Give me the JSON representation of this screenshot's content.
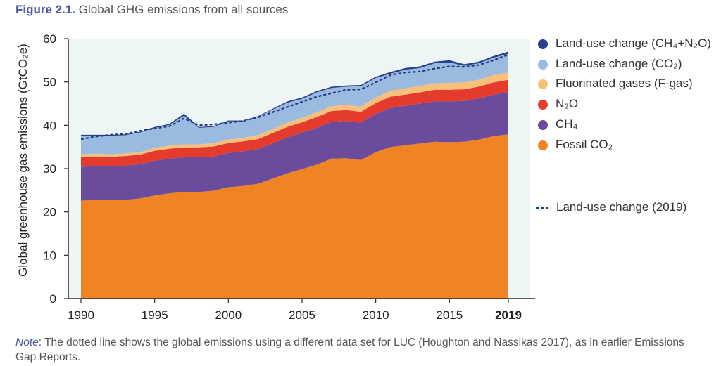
{
  "figure": {
    "number": "Figure 2.1.",
    "title": "Global GHG emissions from all sources"
  },
  "note": {
    "label": "Note",
    "text": ": The dotted line shows the global emissions using a different data set for LUC (Houghton and Nassikas 2017), as in earlier Emissions Gap Reports."
  },
  "chart_data": {
    "type": "area",
    "stacked": true,
    "title": "Global GHG emissions from all sources",
    "ylabel": "Global greenhouse gas emissions (GtCO₂e)",
    "xlabel": "",
    "xlim": [
      1990,
      2019
    ],
    "ylim": [
      0,
      60
    ],
    "x_ticks": [
      "1990",
      "1995",
      "2000",
      "2005",
      "2010",
      "2015",
      "2019"
    ],
    "y_ticks": [
      "0",
      "10",
      "20",
      "30",
      "40",
      "50",
      "60"
    ],
    "grid": false,
    "legend_position": "right",
    "x": [
      1990,
      1991,
      1992,
      1993,
      1994,
      1995,
      1996,
      1997,
      1998,
      1999,
      2000,
      2001,
      2002,
      2003,
      2004,
      2005,
      2006,
      2007,
      2008,
      2009,
      2010,
      2011,
      2012,
      2013,
      2014,
      2015,
      2016,
      2017,
      2018,
      2019
    ],
    "series": [
      {
        "name": "Fossil CO₂",
        "color": "#f08424",
        "values": [
          22.6,
          22.8,
          22.7,
          22.8,
          23.1,
          23.8,
          24.3,
          24.6,
          24.6,
          24.9,
          25.7,
          26.0,
          26.5,
          27.7,
          28.9,
          29.9,
          30.9,
          32.3,
          32.4,
          32.0,
          33.8,
          35.0,
          35.4,
          35.8,
          36.2,
          36.1,
          36.2,
          36.7,
          37.5,
          37.9
        ]
      },
      {
        "name": "CH₄",
        "color": "#6a4b9c",
        "values": [
          7.8,
          7.8,
          7.8,
          7.9,
          7.9,
          8.0,
          8.0,
          8.0,
          8.0,
          7.9,
          7.9,
          8.0,
          8.0,
          8.1,
          8.3,
          8.4,
          8.5,
          8.5,
          8.6,
          8.6,
          8.8,
          9.0,
          9.1,
          9.2,
          9.3,
          9.4,
          9.4,
          9.5,
          9.6,
          9.8
        ]
      },
      {
        "name": "N₂O",
        "color": "#e53b2c",
        "values": [
          2.3,
          2.2,
          2.2,
          2.2,
          2.2,
          2.3,
          2.3,
          2.3,
          2.3,
          2.3,
          2.3,
          2.3,
          2.3,
          2.4,
          2.4,
          2.4,
          2.5,
          2.5,
          2.5,
          2.5,
          2.5,
          2.6,
          2.6,
          2.6,
          2.7,
          2.7,
          2.7,
          2.7,
          2.8,
          2.8
        ]
      },
      {
        "name": "Fluorinated gases (F-gas)",
        "color": "#f8c07b",
        "values": [
          0.6,
          0.6,
          0.6,
          0.6,
          0.6,
          0.7,
          0.7,
          0.7,
          0.7,
          0.8,
          0.8,
          0.8,
          0.9,
          0.9,
          1.0,
          1.0,
          1.1,
          1.1,
          1.2,
          1.2,
          1.3,
          1.4,
          1.4,
          1.5,
          1.5,
          1.6,
          1.6,
          1.6,
          1.7,
          1.7
        ]
      },
      {
        "name": "Land-use change (CO₂)",
        "color": "#9bbae0",
        "values": [
          4.3,
          4.2,
          4.3,
          4.2,
          4.5,
          4.6,
          4.8,
          6.6,
          3.8,
          3.7,
          4.2,
          3.8,
          4.2,
          4.5,
          4.6,
          4.4,
          4.6,
          4.2,
          4.2,
          4.7,
          4.5,
          3.9,
          4.3,
          4.1,
          4.6,
          4.7,
          3.8,
          3.8,
          4.0,
          4.3
        ]
      },
      {
        "name": "Land-use change (CH₄+N₂O)",
        "color": "#28418d",
        "values": [
          0.2,
          0.2,
          0.2,
          0.2,
          0.2,
          0.2,
          0.2,
          0.5,
          0.2,
          0.2,
          0.2,
          0.2,
          0.2,
          0.2,
          0.3,
          0.3,
          0.3,
          0.3,
          0.3,
          0.3,
          0.3,
          0.4,
          0.4,
          0.4,
          0.4,
          0.5,
          0.4,
          0.4,
          0.4,
          0.5
        ]
      }
    ],
    "dashed_series": {
      "name": "Land-use  change (2019)",
      "color": "#1f3a7a",
      "values": [
        36.8,
        37.4,
        37.8,
        38.0,
        38.7,
        39.3,
        39.8,
        41.6,
        40.0,
        40.2,
        40.6,
        41.0,
        41.8,
        43.0,
        44.2,
        45.4,
        46.6,
        47.4,
        48.2,
        48.3,
        49.9,
        51.6,
        52.2,
        52.4,
        53.1,
        53.6,
        53.5,
        53.9,
        55.0,
        56.3
      ]
    }
  }
}
